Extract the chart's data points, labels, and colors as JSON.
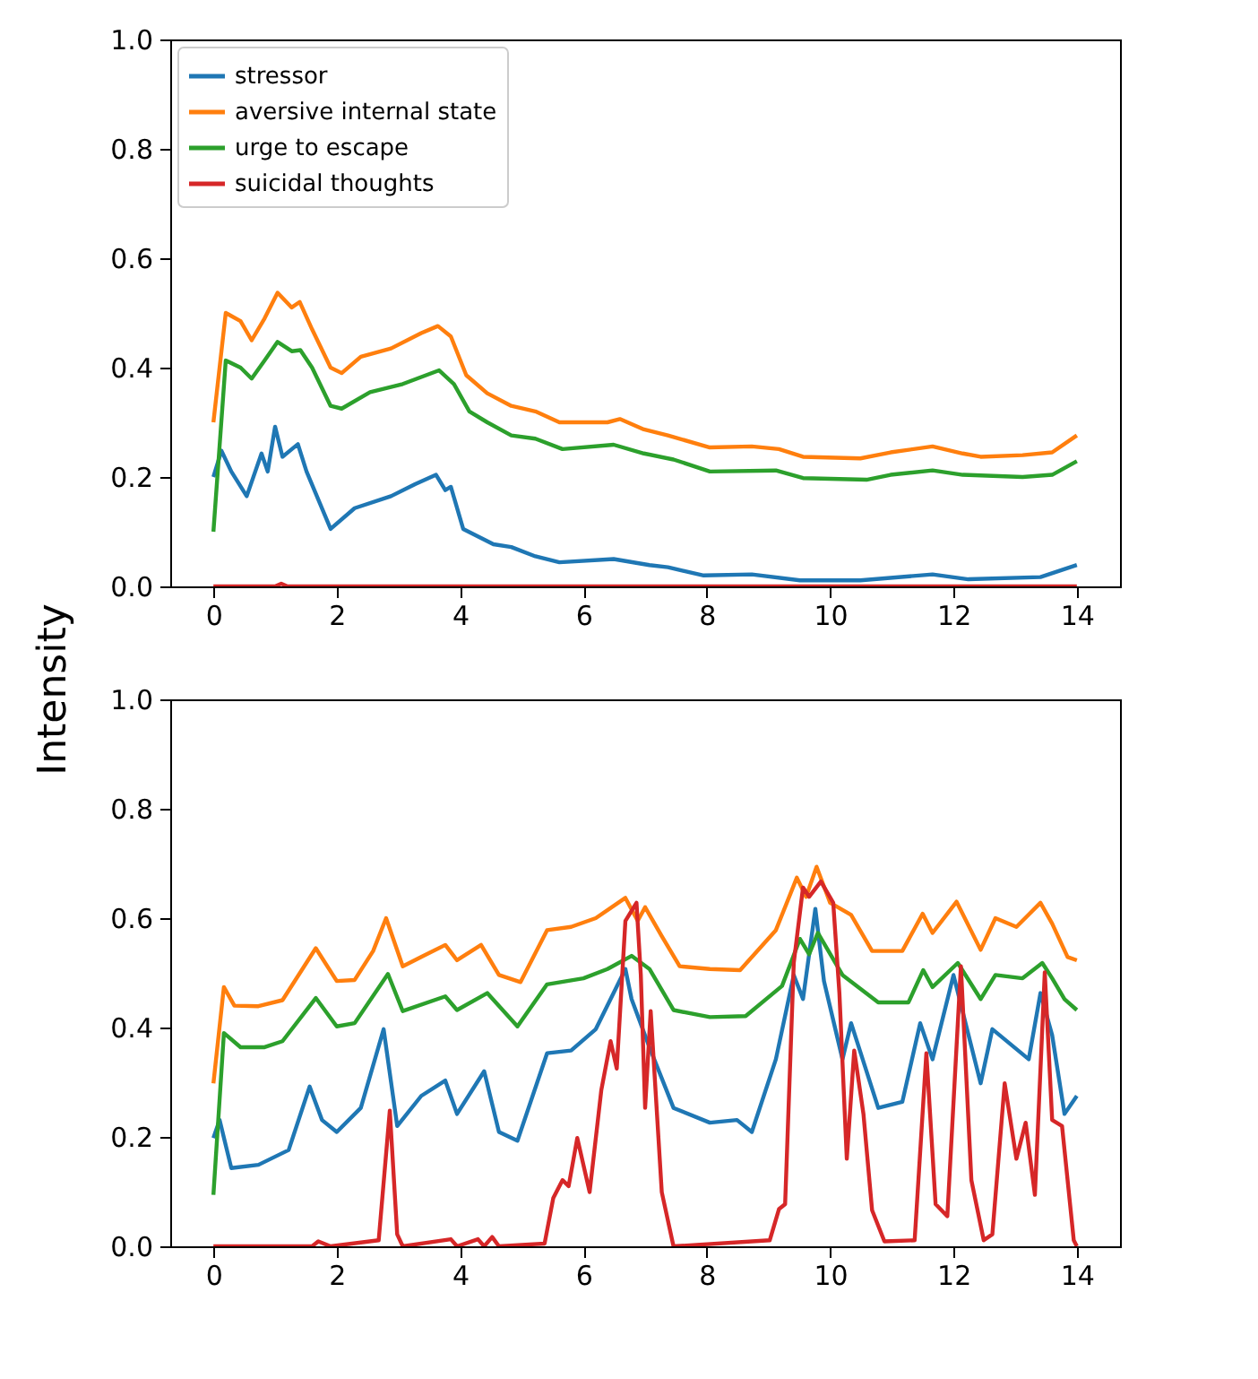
{
  "chart_data": [
    {
      "type": "line",
      "ylabel": "Intensity",
      "xlim": [
        -0.7,
        14.7
      ],
      "xticks": [
        0,
        2,
        4,
        6,
        8,
        10,
        12,
        14
      ],
      "ylim": [
        0,
        1
      ],
      "yticks": [
        {
          "value": 0,
          "label": "0.0"
        },
        {
          "value": 0.2,
          "label": "0.2"
        },
        {
          "value": 0.4,
          "label": "0.4"
        },
        {
          "value": 0.6,
          "label": "0.6"
        },
        {
          "value": 0.8,
          "label": "0.8"
        },
        {
          "value": 1,
          "label": "1.0"
        }
      ],
      "grid": false,
      "legend": "top left",
      "series": [
        {
          "name": "stressor",
          "color": "#1f77b4",
          "x": [
            0,
            0.13,
            0.29,
            0.54,
            0.78,
            0.88,
            1.0,
            1.12,
            1.37,
            1.51,
            1.9,
            2.29,
            2.88,
            3.27,
            3.61,
            3.76,
            3.85,
            4.05,
            4.54,
            4.83,
            5.22,
            5.61,
            6.49,
            7.07,
            7.37,
            7.95,
            8.73,
            9.51,
            10.49,
            11.66,
            12.24,
            13.41,
            14
          ],
          "values": [
            0.2,
            0.248,
            0.21,
            0.165,
            0.243,
            0.21,
            0.292,
            0.237,
            0.26,
            0.21,
            0.105,
            0.143,
            0.165,
            0.187,
            0.204,
            0.176,
            0.182,
            0.105,
            0.077,
            0.072,
            0.055,
            0.044,
            0.05,
            0.039,
            0.035,
            0.02,
            0.022,
            0.011,
            0.011,
            0.022,
            0.013,
            0.017,
            0.039
          ]
        },
        {
          "name": "aversive internal state",
          "color": "#ff7f0e",
          "x": [
            0,
            0.2,
            0.44,
            0.62,
            0.83,
            1.04,
            1.27,
            1.4,
            1.6,
            1.9,
            2.08,
            2.39,
            2.88,
            3.37,
            3.64,
            3.85,
            4.1,
            4.44,
            4.83,
            5.22,
            5.61,
            6.39,
            6.59,
            6.98,
            7.37,
            8.05,
            8.73,
            9.17,
            9.56,
            10.49,
            10.98,
            11.66,
            12.15,
            12.44,
            13.12,
            13.6,
            14
          ],
          "values": [
            0.3,
            0.5,
            0.485,
            0.45,
            0.49,
            0.537,
            0.51,
            0.52,
            0.47,
            0.4,
            0.39,
            0.42,
            0.435,
            0.463,
            0.476,
            0.457,
            0.386,
            0.353,
            0.33,
            0.32,
            0.3,
            0.3,
            0.306,
            0.287,
            0.276,
            0.254,
            0.256,
            0.251,
            0.237,
            0.234,
            0.245,
            0.256,
            0.243,
            0.237,
            0.24,
            0.245,
            0.276
          ]
        },
        {
          "name": "urge to escape",
          "color": "#2ca02c",
          "x": [
            0,
            0.2,
            0.44,
            0.62,
            0.83,
            1.04,
            1.27,
            1.41,
            1.6,
            1.9,
            2.08,
            2.54,
            3.07,
            3.66,
            3.9,
            4.15,
            4.44,
            4.83,
            5.22,
            5.66,
            6.49,
            6.98,
            7.46,
            8.05,
            9.12,
            9.56,
            10.59,
            10.98,
            11.66,
            12.15,
            13.12,
            13.6,
            14
          ],
          "values": [
            0.1,
            0.413,
            0.4,
            0.38,
            0.413,
            0.447,
            0.43,
            0.432,
            0.4,
            0.33,
            0.325,
            0.355,
            0.37,
            0.395,
            0.37,
            0.32,
            0.3,
            0.276,
            0.27,
            0.251,
            0.259,
            0.243,
            0.232,
            0.21,
            0.212,
            0.198,
            0.195,
            0.204,
            0.212,
            0.204,
            0.2,
            0.204,
            0.229
          ]
        },
        {
          "name": "suicidal thoughts",
          "color": "#d62728",
          "x": [
            0,
            1.0,
            1.1,
            1.2,
            14
          ],
          "values": [
            0,
            0,
            0.005,
            0,
            0
          ]
        }
      ]
    },
    {
      "type": "line",
      "xlim": [
        -0.7,
        14.7
      ],
      "xticks": [
        0,
        2,
        4,
        6,
        8,
        10,
        12,
        14
      ],
      "ylim": [
        0,
        1
      ],
      "yticks": [
        {
          "value": 0,
          "label": "0.0"
        },
        {
          "value": 0.2,
          "label": "0.2"
        },
        {
          "value": 0.4,
          "label": "0.4"
        },
        {
          "value": 0.6,
          "label": "0.6"
        },
        {
          "value": 0.8,
          "label": "0.8"
        },
        {
          "value": 1,
          "label": "1.0"
        }
      ],
      "grid": false,
      "series": [
        {
          "color": "#1f77b4",
          "x": [
            0,
            0.1,
            0.29,
            0.73,
            1.22,
            1.56,
            1.76,
            2.0,
            2.39,
            2.76,
            2.98,
            3.37,
            3.76,
            3.95,
            4.39,
            4.63,
            4.93,
            5.41,
            5.8,
            6.2,
            6.68,
            6.78,
            7.07,
            7.46,
            8.05,
            8.49,
            8.73,
            9.12,
            9.41,
            9.56,
            9.76,
            9.9,
            10.2,
            10.34,
            10.78,
            11.17,
            11.46,
            11.66,
            12.0,
            12.44,
            12.63,
            13.22,
            13.41,
            13.6,
            13.8,
            14
          ],
          "values": [
            0.198,
            0.231,
            0.143,
            0.149,
            0.176,
            0.292,
            0.231,
            0.209,
            0.253,
            0.397,
            0.22,
            0.275,
            0.303,
            0.242,
            0.32,
            0.209,
            0.193,
            0.353,
            0.358,
            0.397,
            0.507,
            0.452,
            0.364,
            0.253,
            0.226,
            0.231,
            0.209,
            0.342,
            0.496,
            0.452,
            0.617,
            0.485,
            0.342,
            0.408,
            0.253,
            0.264,
            0.408,
            0.342,
            0.496,
            0.298,
            0.397,
            0.342,
            0.463,
            0.386,
            0.242,
            0.275
          ]
        },
        {
          "color": "#ff7f0e",
          "x": [
            0,
            0.17,
            0.34,
            0.73,
            1.12,
            1.66,
            2.0,
            2.29,
            2.59,
            2.8,
            3.07,
            3.37,
            3.76,
            3.95,
            4.34,
            4.63,
            4.98,
            5.41,
            5.8,
            6.2,
            6.68,
            6.88,
            7.0,
            7.27,
            7.56,
            8.05,
            8.54,
            9.12,
            9.46,
            9.61,
            9.78,
            10.0,
            10.34,
            10.68,
            11.17,
            11.5,
            11.66,
            12.05,
            12.44,
            12.68,
            13.02,
            13.41,
            13.6,
            13.85,
            14
          ],
          "values": [
            0.298,
            0.474,
            0.44,
            0.439,
            0.45,
            0.545,
            0.485,
            0.487,
            0.54,
            0.6,
            0.512,
            0.529,
            0.551,
            0.523,
            0.551,
            0.496,
            0.483,
            0.578,
            0.584,
            0.6,
            0.637,
            0.595,
            0.62,
            0.567,
            0.512,
            0.507,
            0.505,
            0.578,
            0.674,
            0.639,
            0.694,
            0.628,
            0.606,
            0.54,
            0.54,
            0.608,
            0.573,
            0.63,
            0.542,
            0.6,
            0.584,
            0.628,
            0.59,
            0.529,
            0.523
          ]
        },
        {
          "color": "#2ca02c",
          "x": [
            0,
            0.17,
            0.44,
            0.83,
            1.12,
            1.66,
            2.0,
            2.29,
            2.83,
            3.07,
            3.76,
            3.95,
            4.44,
            4.93,
            5.41,
            6.0,
            6.39,
            6.78,
            7.07,
            7.46,
            8.05,
            8.63,
            9.22,
            9.51,
            9.66,
            9.8,
            10.2,
            10.78,
            11.27,
            11.51,
            11.66,
            12.07,
            12.44,
            12.68,
            13.12,
            13.44,
            13.6,
            13.8,
            14
          ],
          "values": [
            0.094,
            0.39,
            0.364,
            0.364,
            0.375,
            0.454,
            0.402,
            0.408,
            0.498,
            0.43,
            0.457,
            0.432,
            0.463,
            0.402,
            0.479,
            0.49,
            0.507,
            0.531,
            0.507,
            0.432,
            0.419,
            0.421,
            0.476,
            0.562,
            0.534,
            0.573,
            0.496,
            0.446,
            0.446,
            0.505,
            0.474,
            0.518,
            0.452,
            0.496,
            0.49,
            0.518,
            0.49,
            0.452,
            0.432
          ]
        },
        {
          "color": "#d62728",
          "x": [
            0,
            1.6,
            1.7,
            1.9,
            2.68,
            2.86,
            2.98,
            3.07,
            3.85,
            3.95,
            4.29,
            4.39,
            4.52,
            4.63,
            5.37,
            5.51,
            5.66,
            5.76,
            5.9,
            6.1,
            6.29,
            6.44,
            6.54,
            6.68,
            6.86,
            6.93,
            7.0,
            7.09,
            7.27,
            7.46,
            9.02,
            9.17,
            9.27,
            9.41,
            9.56,
            9.66,
            9.85,
            10.05,
            10.15,
            10.27,
            10.39,
            10.54,
            10.68,
            10.88,
            11.37,
            11.56,
            11.71,
            11.9,
            12.12,
            12.29,
            12.49,
            12.63,
            12.83,
            13.02,
            13.17,
            13.32,
            13.48,
            13.6,
            13.76,
            13.95,
            14
          ],
          "values": [
            0,
            0,
            0.009,
            0,
            0.011,
            0.248,
            0.022,
            0,
            0.013,
            0,
            0.013,
            0,
            0.017,
            0,
            0.005,
            0.088,
            0.121,
            0.11,
            0.198,
            0.099,
            0.286,
            0.375,
            0.325,
            0.595,
            0.628,
            0.496,
            0.253,
            0.43,
            0.099,
            0,
            0.011,
            0.068,
            0.077,
            0.518,
            0.656,
            0.639,
            0.667,
            0.628,
            0.463,
            0.16,
            0.358,
            0.242,
            0.066,
            0.009,
            0.011,
            0.353,
            0.077,
            0.055,
            0.512,
            0.121,
            0.011,
            0.022,
            0.298,
            0.16,
            0.226,
            0.094,
            0.501,
            0.231,
            0.22,
            0.011,
            0
          ]
        }
      ]
    }
  ]
}
